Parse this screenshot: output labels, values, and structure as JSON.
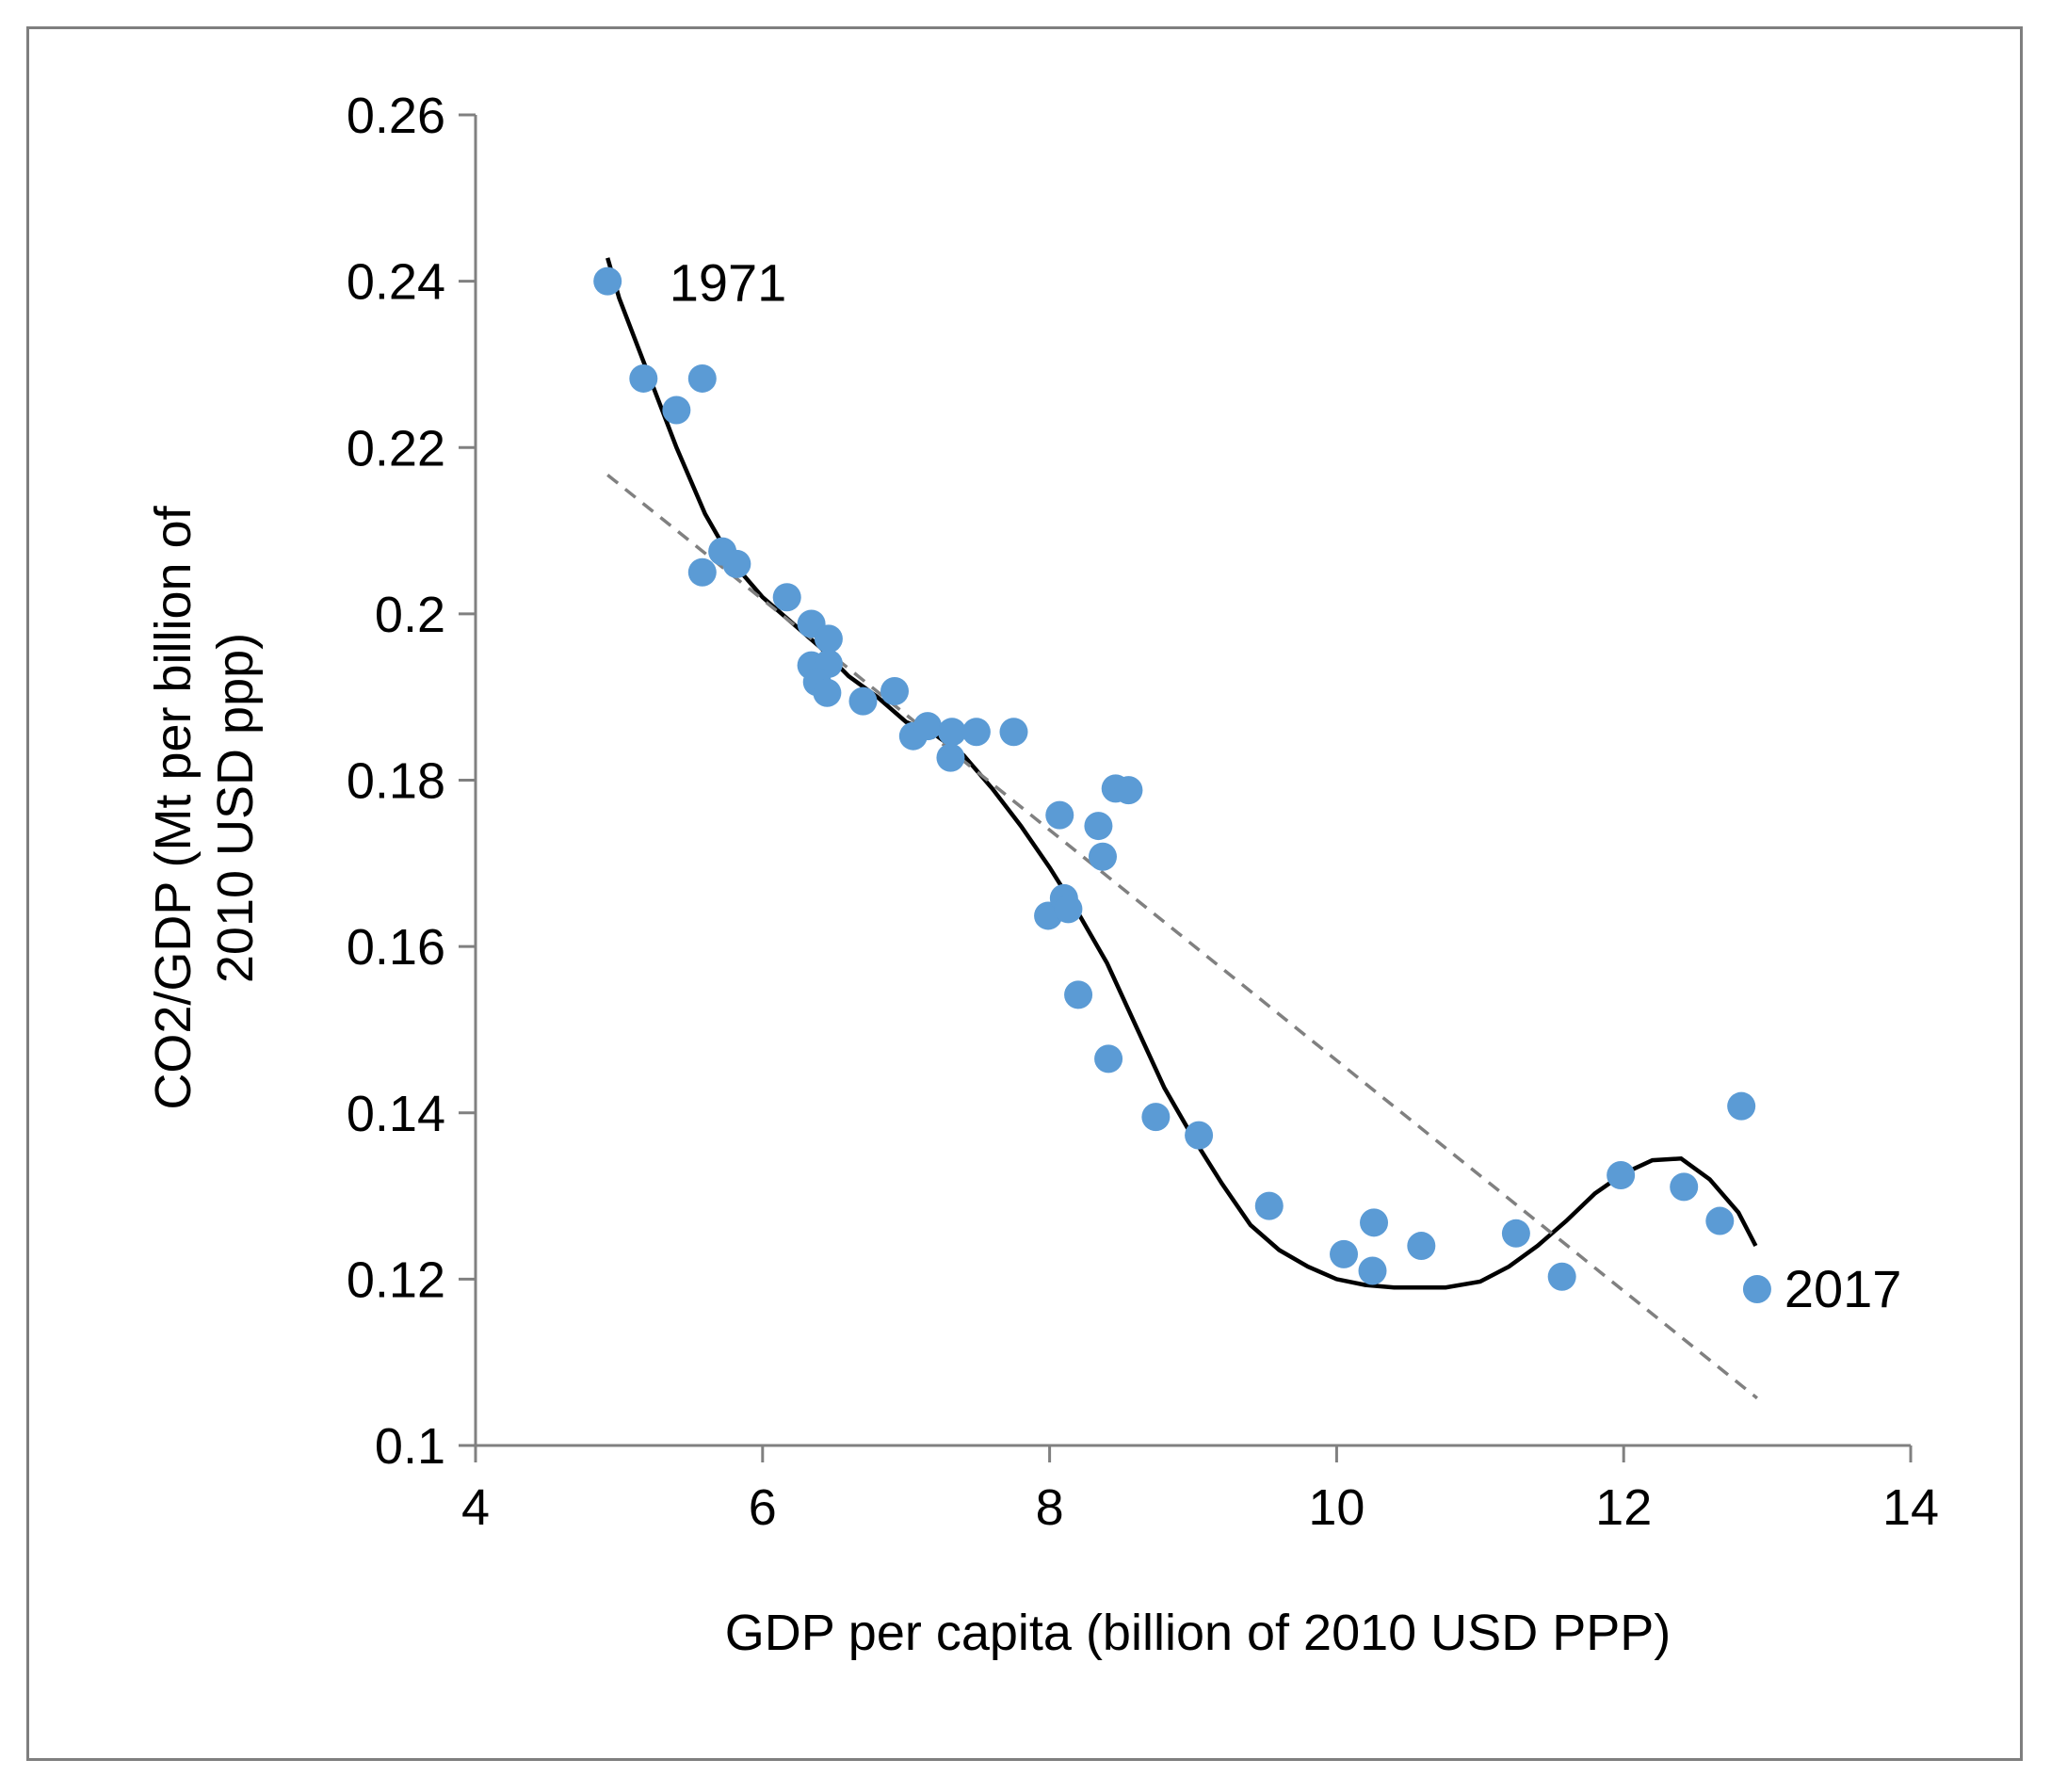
{
  "chart_data": {
    "type": "scatter",
    "title": "",
    "xlabel": "GDP per capita  (billion of 2010 USD PPP)",
    "ylabel_line1": "CO2/GDP (Mt per billion of",
    "ylabel_line2": "2010 USD ppp)",
    "xlim": [
      4,
      14
    ],
    "ylim": [
      0.1,
      0.26
    ],
    "x_ticks": [
      4,
      6,
      8,
      10,
      12,
      14
    ],
    "x_tick_labels": [
      "4",
      "6",
      "8",
      "10",
      "12",
      "14"
    ],
    "y_ticks": [
      0.1,
      0.12,
      0.14,
      0.16,
      0.18,
      0.2,
      0.22,
      0.24,
      0.26
    ],
    "y_tick_labels": [
      "0.1",
      "0.12",
      "0.14",
      "0.16",
      "0.18",
      "0.2",
      "0.22",
      "0.24",
      "0.26"
    ],
    "grid": false,
    "legend": "none",
    "annotations": [
      {
        "text": "1971",
        "x": 5.35,
        "y": 0.24
      },
      {
        "text": "2017",
        "x": 13.12,
        "y": 0.119
      }
    ],
    "series": [
      {
        "name": "CO2/GDP",
        "kind": "points",
        "color": "#5b9bd5",
        "points": [
          [
            4.92,
            0.24
          ],
          [
            5.17,
            0.2283
          ],
          [
            5.4,
            0.2245
          ],
          [
            5.58,
            0.2283
          ],
          [
            5.58,
            0.205
          ],
          [
            5.72,
            0.2075
          ],
          [
            5.82,
            0.206
          ],
          [
            6.17,
            0.202
          ],
          [
            6.34,
            0.1988
          ],
          [
            6.46,
            0.197
          ],
          [
            6.34,
            0.1938
          ],
          [
            6.46,
            0.194
          ],
          [
            6.38,
            0.1918
          ],
          [
            6.45,
            0.1905
          ],
          [
            6.7,
            0.1895
          ],
          [
            6.92,
            0.1907
          ],
          [
            7.05,
            0.1853
          ],
          [
            7.15,
            0.1865
          ],
          [
            7.32,
            0.1858
          ],
          [
            7.31,
            0.1827
          ],
          [
            7.49,
            0.1858
          ],
          [
            7.75,
            0.1858
          ],
          [
            8.07,
            0.1758
          ],
          [
            8.34,
            0.1745
          ],
          [
            8.37,
            0.1708
          ],
          [
            8.46,
            0.179
          ],
          [
            8.55,
            0.1788
          ],
          [
            7.99,
            0.1637
          ],
          [
            8.1,
            0.1658
          ],
          [
            8.13,
            0.1645
          ],
          [
            8.2,
            0.1542
          ],
          [
            8.41,
            0.1465
          ],
          [
            8.74,
            0.1395
          ],
          [
            9.04,
            0.1373
          ],
          [
            9.53,
            0.1288
          ],
          [
            10.05,
            0.123
          ],
          [
            10.26,
            0.1268
          ],
          [
            10.25,
            0.121
          ],
          [
            10.59,
            0.124
          ],
          [
            11.25,
            0.1255
          ],
          [
            11.57,
            0.1203
          ],
          [
            11.98,
            0.1325
          ],
          [
            12.42,
            0.1311
          ],
          [
            12.67,
            0.127
          ],
          [
            12.82,
            0.1408
          ],
          [
            12.93,
            0.1188
          ]
        ]
      },
      {
        "name": "Polynomial fit",
        "kind": "solid-line",
        "color": "#000000",
        "points": [
          [
            4.92,
            0.2428
          ],
          [
            5.0,
            0.238
          ],
          [
            5.2,
            0.229
          ],
          [
            5.4,
            0.22
          ],
          [
            5.6,
            0.212
          ],
          [
            5.8,
            0.206
          ],
          [
            6.0,
            0.202
          ],
          [
            6.2,
            0.199
          ],
          [
            6.4,
            0.196
          ],
          [
            6.6,
            0.1925
          ],
          [
            6.8,
            0.19
          ],
          [
            7.0,
            0.187
          ],
          [
            7.2,
            0.1855
          ],
          [
            7.4,
            0.183
          ],
          [
            7.6,
            0.179
          ],
          [
            7.8,
            0.1745
          ],
          [
            8.0,
            0.1695
          ],
          [
            8.2,
            0.164
          ],
          [
            8.4,
            0.158
          ],
          [
            8.6,
            0.1505
          ],
          [
            8.8,
            0.143
          ],
          [
            9.0,
            0.137
          ],
          [
            9.2,
            0.1315
          ],
          [
            9.4,
            0.1265
          ],
          [
            9.6,
            0.1235
          ],
          [
            9.8,
            0.1215
          ],
          [
            10.0,
            0.12
          ],
          [
            10.2,
            0.1193
          ],
          [
            10.4,
            0.119
          ],
          [
            10.6,
            0.119
          ],
          [
            10.76,
            0.119
          ],
          [
            11.0,
            0.1197
          ],
          [
            11.2,
            0.1215
          ],
          [
            11.4,
            0.124
          ],
          [
            11.6,
            0.127
          ],
          [
            11.8,
            0.1303
          ],
          [
            12.0,
            0.1327
          ],
          [
            12.2,
            0.1343
          ],
          [
            12.4,
            0.1345
          ],
          [
            12.6,
            0.132
          ],
          [
            12.8,
            0.128
          ],
          [
            12.92,
            0.124
          ]
        ]
      },
      {
        "name": "Linear trend",
        "kind": "dashed-line",
        "color": "#808080",
        "points": [
          [
            4.92,
            0.2167
          ],
          [
            12.93,
            0.1057
          ]
        ]
      }
    ]
  }
}
